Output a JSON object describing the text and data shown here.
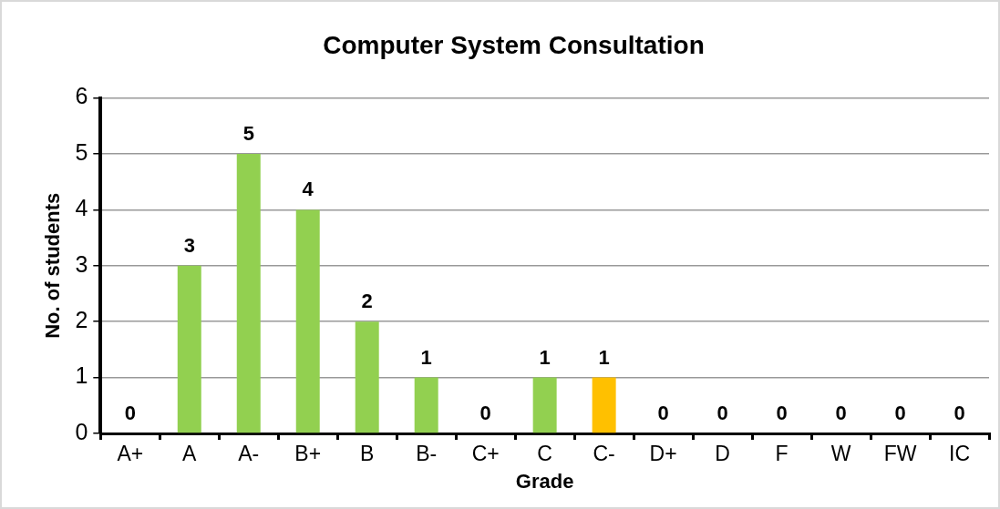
{
  "chart_data": {
    "type": "bar",
    "title": "Computer System Consultation",
    "xlabel": "Grade",
    "ylabel": "No. of students",
    "categories": [
      "A+",
      "A",
      "A-",
      "B+",
      "B",
      "B-",
      "C+",
      "C",
      "C-",
      "D+",
      "D",
      "F",
      "W",
      "FW",
      "IC"
    ],
    "values": [
      0,
      3,
      5,
      4,
      2,
      1,
      0,
      1,
      1,
      0,
      0,
      0,
      0,
      0,
      0
    ],
    "colors": [
      "#92d050",
      "#92d050",
      "#92d050",
      "#92d050",
      "#92d050",
      "#92d050",
      "#92d050",
      "#92d050",
      "#ffc000",
      "#92d050",
      "#92d050",
      "#92d050",
      "#92d050",
      "#92d050",
      "#92d050"
    ],
    "ylim": [
      0,
      6
    ],
    "yticks": [
      0,
      1,
      2,
      3,
      4,
      5,
      6
    ],
    "grid": "y",
    "legend": false,
    "data_labels": true
  }
}
